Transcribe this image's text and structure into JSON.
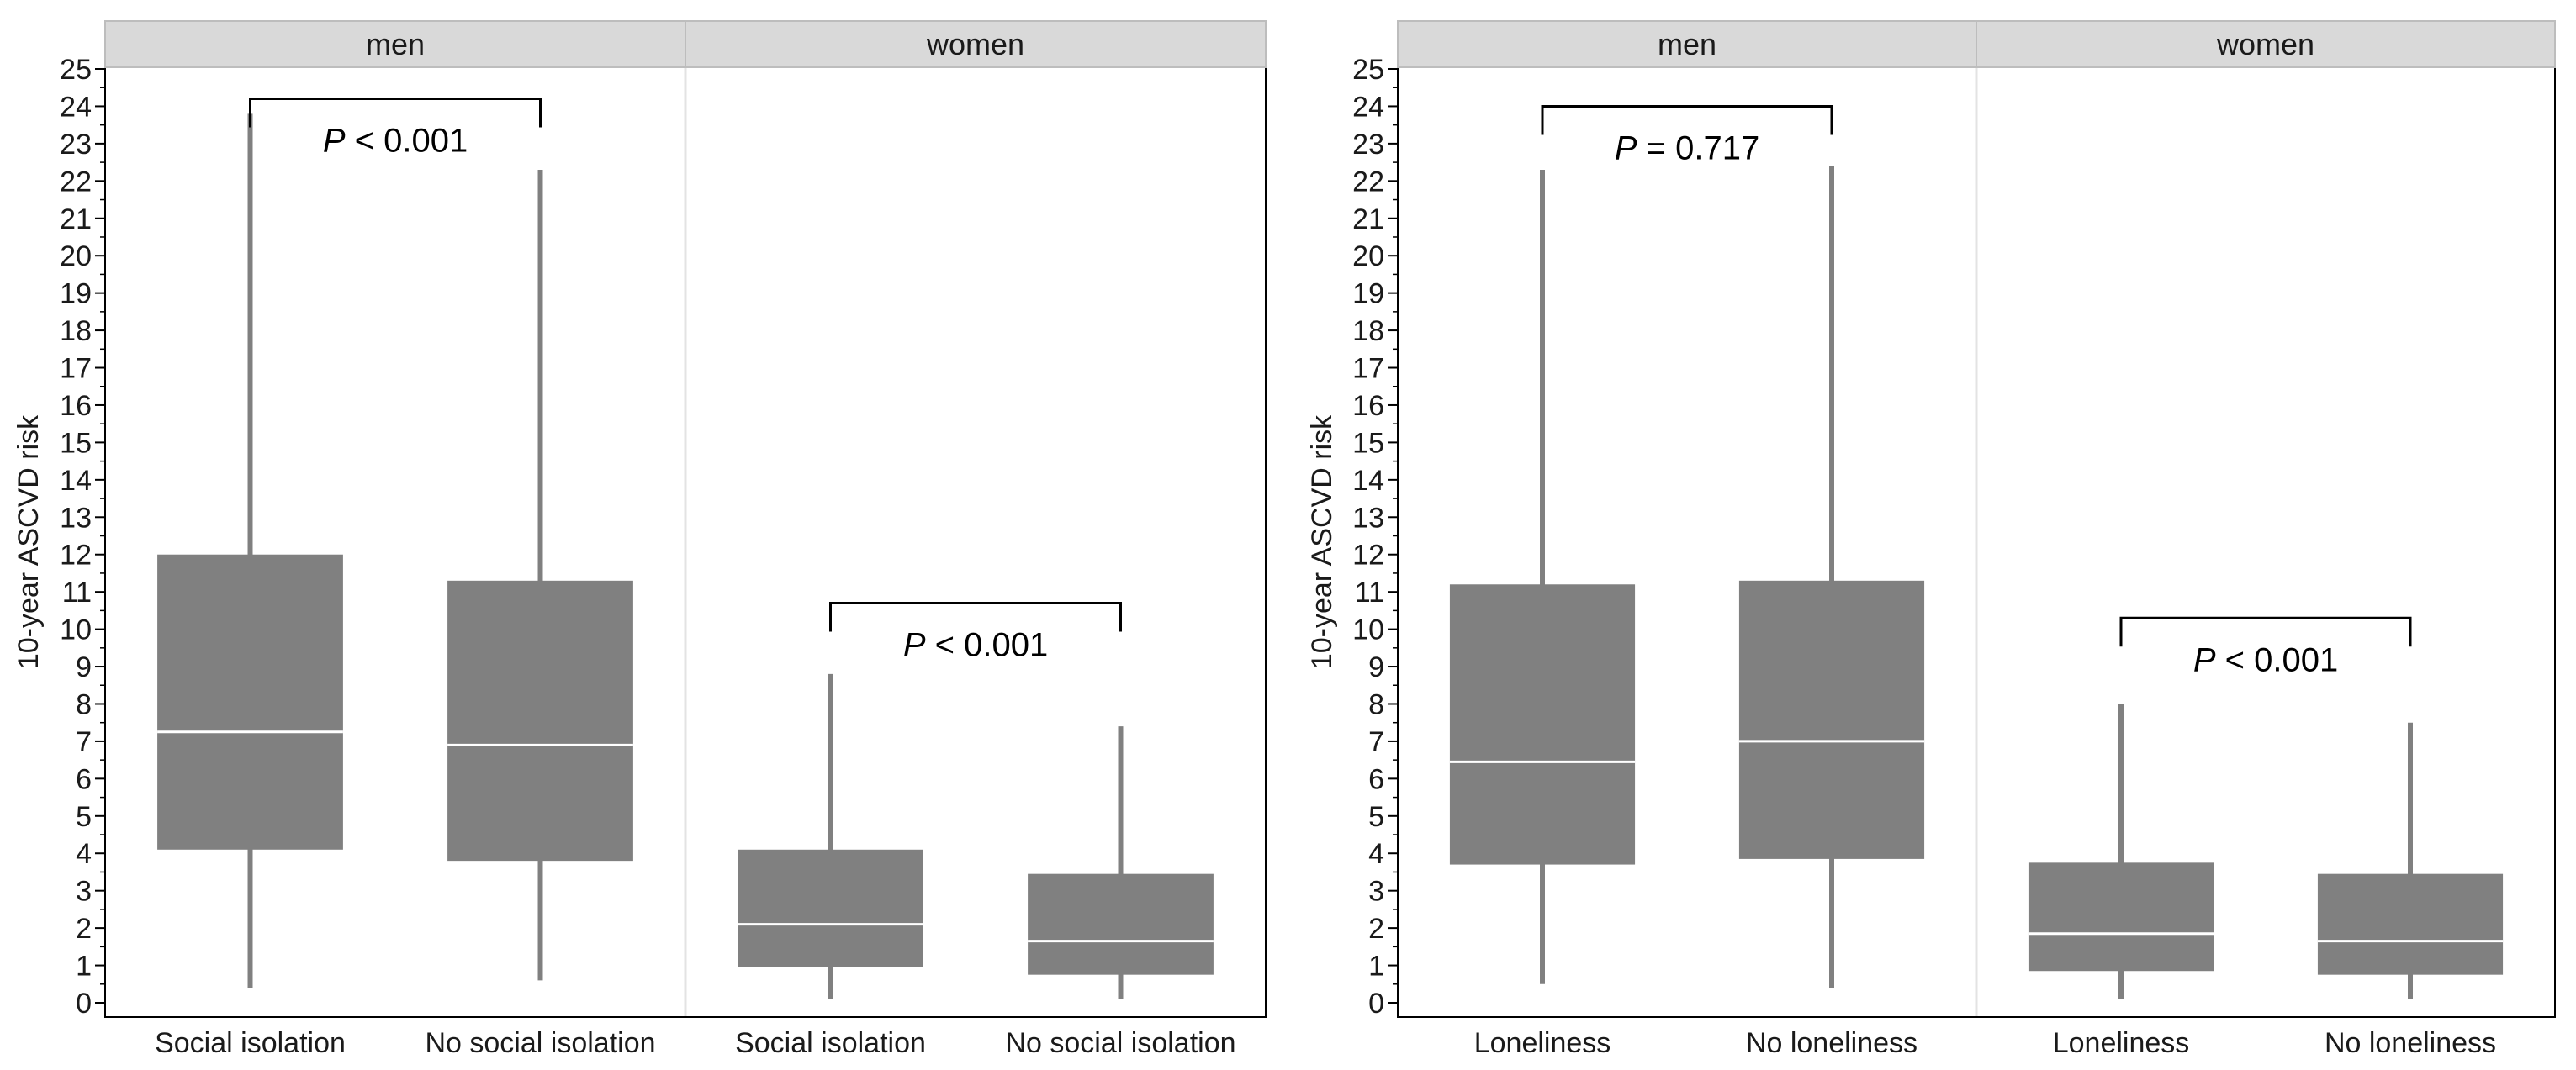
{
  "colors": {
    "box": "#808080",
    "whisker": "#808080",
    "median": "#ffffff",
    "strip_bg": "#d9d9d9",
    "strip_border": "#bdbdbd",
    "frame": "#000000",
    "divider": "#e3e3e3"
  },
  "chart_data": [
    {
      "type": "box",
      "ylabel": "10-year ASCVD risk",
      "ylim": [
        0,
        25
      ],
      "yticks": [
        "0",
        "1",
        "2",
        "3",
        "4",
        "5",
        "6",
        "7",
        "8",
        "9",
        "10",
        "11",
        "12",
        "13",
        "14",
        "15",
        "16",
        "17",
        "18",
        "19",
        "20",
        "21",
        "22",
        "23",
        "24",
        "25"
      ],
      "facets": [
        {
          "label": "men",
          "categories": [
            "Social isolation",
            "No social isolation"
          ],
          "boxes": [
            {
              "whisker_low": 0.4,
              "q1": 4.1,
              "median": 7.25,
              "q3": 12.0,
              "whisker_high": 23.8
            },
            {
              "whisker_low": 0.6,
              "q1": 3.8,
              "median": 6.9,
              "q3": 11.3,
              "whisker_high": 22.3
            }
          ],
          "comparison": {
            "p_symbol": "P",
            "p_text": " < 0.001",
            "bracket_level": 24.2
          }
        },
        {
          "label": "women",
          "categories": [
            "Social isolation",
            "No social isolation"
          ],
          "boxes": [
            {
              "whisker_low": 0.1,
              "q1": 0.95,
              "median": 2.1,
              "q3": 4.1,
              "whisker_high": 8.8
            },
            {
              "whisker_low": 0.1,
              "q1": 0.75,
              "median": 1.65,
              "q3": 3.45,
              "whisker_high": 7.4
            }
          ],
          "comparison": {
            "p_symbol": "P",
            "p_text": " < 0.001",
            "bracket_level": 10.7
          }
        }
      ]
    },
    {
      "type": "box",
      "ylabel": "10-year ASCVD risk",
      "ylim": [
        0,
        25
      ],
      "yticks": [
        "0",
        "1",
        "2",
        "3",
        "4",
        "5",
        "6",
        "7",
        "8",
        "9",
        "10",
        "11",
        "12",
        "13",
        "14",
        "15",
        "16",
        "17",
        "18",
        "19",
        "20",
        "21",
        "22",
        "23",
        "24",
        "25"
      ],
      "facets": [
        {
          "label": "men",
          "categories": [
            "Loneliness",
            "No loneliness"
          ],
          "boxes": [
            {
              "whisker_low": 0.5,
              "q1": 3.7,
              "median": 6.45,
              "q3": 11.2,
              "whisker_high": 22.3
            },
            {
              "whisker_low": 0.4,
              "q1": 3.85,
              "median": 7.0,
              "q3": 11.3,
              "whisker_high": 22.4
            }
          ],
          "comparison": {
            "p_symbol": "P",
            "p_text": " = 0.717",
            "bracket_level": 24.0
          }
        },
        {
          "label": "women",
          "categories": [
            "Loneliness",
            "No loneliness"
          ],
          "boxes": [
            {
              "whisker_low": 0.1,
              "q1": 0.85,
              "median": 1.85,
              "q3": 3.75,
              "whisker_high": 8.0
            },
            {
              "whisker_low": 0.1,
              "q1": 0.75,
              "median": 1.65,
              "q3": 3.45,
              "whisker_high": 7.5
            }
          ],
          "comparison": {
            "p_symbol": "P",
            "p_text": " < 0.001",
            "bracket_level": 10.3
          }
        }
      ]
    }
  ]
}
